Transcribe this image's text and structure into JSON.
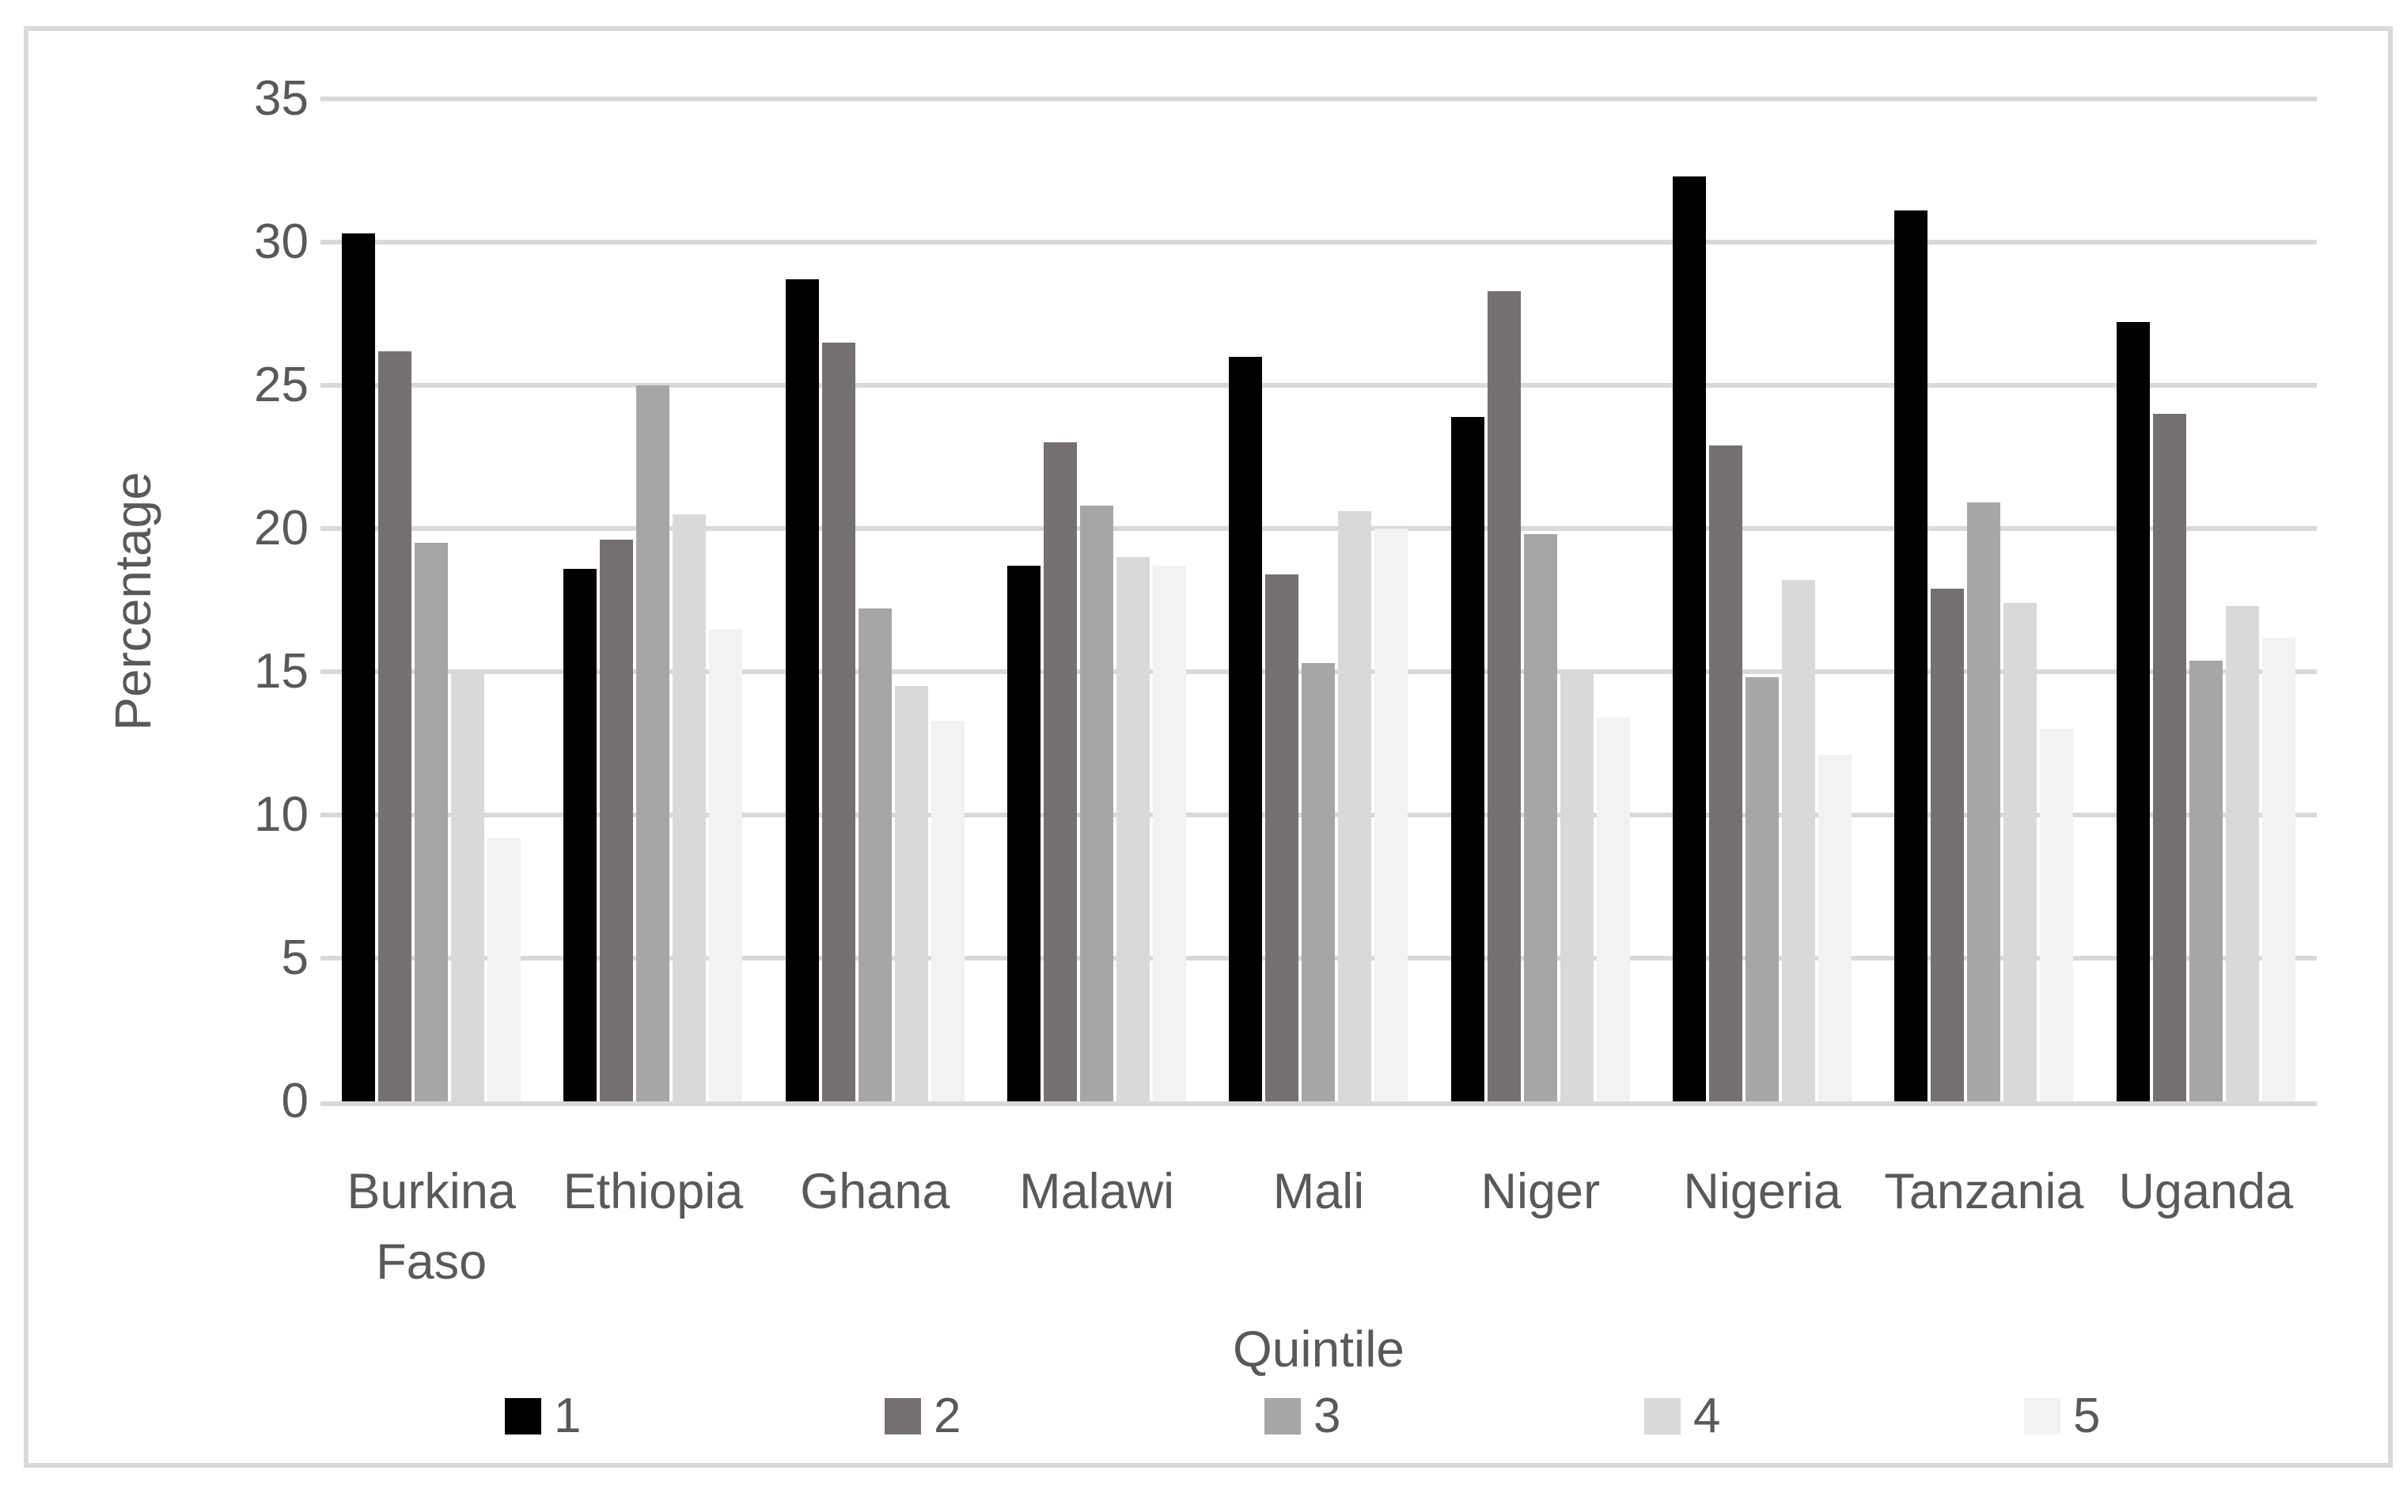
{
  "chart_data": {
    "type": "bar",
    "title": "",
    "xlabel": "Quintile",
    "ylabel": "Percentage",
    "ylim": [
      0,
      35
    ],
    "ytick_step": 5,
    "yticks": [
      0,
      5,
      10,
      15,
      20,
      25,
      30,
      35
    ],
    "grid": true,
    "legend_position": "bottom",
    "categories": [
      "Burkina Faso",
      "Ethiopia",
      "Ghana",
      "Malawi",
      "Mali",
      "Niger",
      "Nigeria",
      "Tanzania",
      "Uganda"
    ],
    "series": [
      {
        "name": "1",
        "color": "#000000",
        "values": [
          30.3,
          18.6,
          28.7,
          18.7,
          26.0,
          23.9,
          32.3,
          31.1,
          27.2
        ]
      },
      {
        "name": "2",
        "color": "#767171",
        "values": [
          26.2,
          19.6,
          26.5,
          23.0,
          18.4,
          28.3,
          22.9,
          17.9,
          24.0
        ]
      },
      {
        "name": "3",
        "color": "#a6a6a6",
        "values": [
          19.5,
          25.0,
          17.2,
          20.8,
          15.3,
          19.8,
          14.8,
          20.9,
          15.4
        ]
      },
      {
        "name": "4",
        "color": "#d9d9d9",
        "values": [
          15.0,
          20.5,
          14.5,
          19.0,
          20.6,
          15.0,
          18.2,
          17.4,
          17.3
        ]
      },
      {
        "name": "5",
        "color": "#f2f2f2",
        "values": [
          9.2,
          16.5,
          13.3,
          18.7,
          20.0,
          13.4,
          12.1,
          13.0,
          16.2
        ]
      }
    ],
    "colors": {
      "text": "#595959",
      "gridline": "#d9d9d9",
      "axis_line": "#d9d9d9",
      "chart_border": "#d9d9d9",
      "background": "#ffffff"
    }
  },
  "axis": {
    "y_title": "Percentage",
    "x_title": "Quintile"
  },
  "legend": {
    "items": [
      {
        "label": "1",
        "color": "#000000"
      },
      {
        "label": "2",
        "color": "#767171"
      },
      {
        "label": "3",
        "color": "#a6a6a6"
      },
      {
        "label": "4",
        "color": "#d9d9d9"
      },
      {
        "label": "5",
        "color": "#f2f2f2"
      }
    ],
    "item_x_positions": [
      638,
      1118,
      1598,
      2078,
      2558
    ]
  }
}
